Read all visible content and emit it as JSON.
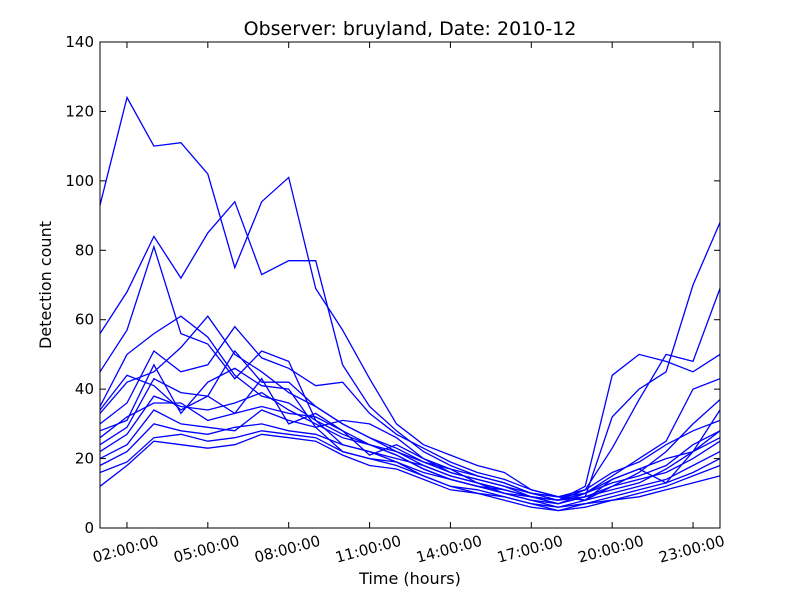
{
  "chart_data": {
    "type": "line",
    "title": "Observer: bruyland, Date: 2010-12",
    "xlabel": "Time (hours)",
    "ylabel": "Detection count",
    "ylim": [
      0,
      140
    ],
    "yticks": [
      0,
      20,
      40,
      60,
      80,
      100,
      120,
      140
    ],
    "xlim": [
      1,
      24
    ],
    "xticks": [
      {
        "value": 2,
        "label": "02:00:00"
      },
      {
        "value": 5,
        "label": "05:00:00"
      },
      {
        "value": 8,
        "label": "08:00:00"
      },
      {
        "value": 11,
        "label": "11:00:00"
      },
      {
        "value": 14,
        "label": "14:00:00"
      },
      {
        "value": 17,
        "label": "17:00:00"
      },
      {
        "value": 20,
        "label": "20:00:00"
      },
      {
        "value": 23,
        "label": "23:00:00"
      }
    ],
    "grid": false,
    "line_color": "#0000ff",
    "x": [
      1,
      2,
      3,
      4,
      5,
      6,
      7,
      8,
      9,
      10,
      11,
      12,
      13,
      14,
      15,
      16,
      17,
      18,
      19,
      20,
      21,
      22,
      23,
      24
    ],
    "series": [
      {
        "values": [
          93,
          124,
          110,
          111,
          102,
          75,
          94,
          101,
          69,
          57,
          43,
          30,
          24,
          21,
          18,
          16,
          11,
          9,
          8,
          14,
          17,
          13,
          22,
          28
        ]
      },
      {
        "values": [
          56,
          68,
          84,
          72,
          85,
          94,
          73,
          77,
          77,
          47,
          35,
          28,
          22,
          18,
          15,
          13,
          10,
          8,
          11,
          23,
          37,
          50,
          48,
          69
        ]
      },
      {
        "values": [
          45,
          57,
          81,
          56,
          53,
          43,
          51,
          48,
          31,
          24,
          22,
          20,
          18,
          15,
          13,
          11,
          9,
          7,
          9,
          32,
          40,
          45,
          70,
          88
        ]
      },
      {
        "values": [
          35,
          50,
          56,
          61,
          55,
          44,
          38,
          36,
          31,
          27,
          24,
          21,
          17,
          14,
          12,
          10,
          9,
          8,
          12,
          44,
          50,
          48,
          45,
          50
        ]
      },
      {
        "values": [
          33,
          42,
          45,
          52,
          61,
          50,
          45,
          39,
          35,
          30,
          26,
          22,
          19,
          17,
          15,
          13,
          10,
          9,
          10,
          15,
          20,
          25,
          40,
          43
        ]
      },
      {
        "values": [
          30,
          36,
          51,
          45,
          47,
          58,
          49,
          46,
          41,
          42,
          33,
          27,
          23,
          19,
          16,
          14,
          11,
          9,
          8,
          12,
          16,
          22,
          30,
          37
        ]
      },
      {
        "values": [
          28,
          31,
          47,
          33,
          42,
          46,
          41,
          40,
          29,
          31,
          30,
          26,
          20,
          16,
          14,
          12,
          9,
          8,
          9,
          11,
          13,
          17,
          22,
          34
        ]
      },
      {
        "values": [
          24,
          29,
          43,
          39,
          38,
          33,
          43,
          30,
          33,
          28,
          21,
          24,
          20,
          17,
          13,
          11,
          9,
          7,
          10,
          13,
          15,
          18,
          24,
          28
        ]
      },
      {
        "values": [
          22,
          27,
          38,
          35,
          34,
          36,
          39,
          34,
          30,
          26,
          24,
          22,
          18,
          15,
          13,
          10,
          8,
          7,
          9,
          12,
          14,
          16,
          20,
          25
        ]
      },
      {
        "values": [
          20,
          24,
          34,
          30,
          29,
          28,
          34,
          31,
          29,
          22,
          20,
          19,
          16,
          14,
          12,
          10,
          8,
          6,
          8,
          10,
          12,
          14,
          18,
          22
        ]
      },
      {
        "values": [
          18,
          22,
          30,
          28,
          27,
          29,
          30,
          28,
          27,
          24,
          22,
          19,
          15,
          12,
          11,
          9,
          7,
          6,
          7,
          9,
          11,
          13,
          16,
          20
        ]
      },
      {
        "values": [
          16,
          19,
          26,
          27,
          25,
          26,
          28,
          27,
          26,
          22,
          20,
          18,
          15,
          12,
          10,
          9,
          7,
          5,
          7,
          8,
          10,
          12,
          15,
          18
        ]
      },
      {
        "values": [
          12,
          18,
          25,
          24,
          23,
          24,
          27,
          26,
          25,
          21,
          18,
          17,
          14,
          11,
          10,
          8,
          6,
          5,
          6,
          8,
          9,
          11,
          13,
          15
        ]
      },
      {
        "values": [
          26,
          32,
          36,
          36,
          31,
          33,
          35,
          33,
          32,
          28,
          24,
          21,
          17,
          14,
          12,
          11,
          9,
          8,
          10,
          14,
          17,
          20,
          22,
          26
        ]
      },
      {
        "values": [
          34,
          44,
          41,
          34,
          38,
          51,
          42,
          42,
          35,
          30,
          26,
          23,
          19,
          16,
          14,
          12,
          10,
          9,
          11,
          16,
          19,
          24,
          28,
          31
        ]
      }
    ]
  }
}
